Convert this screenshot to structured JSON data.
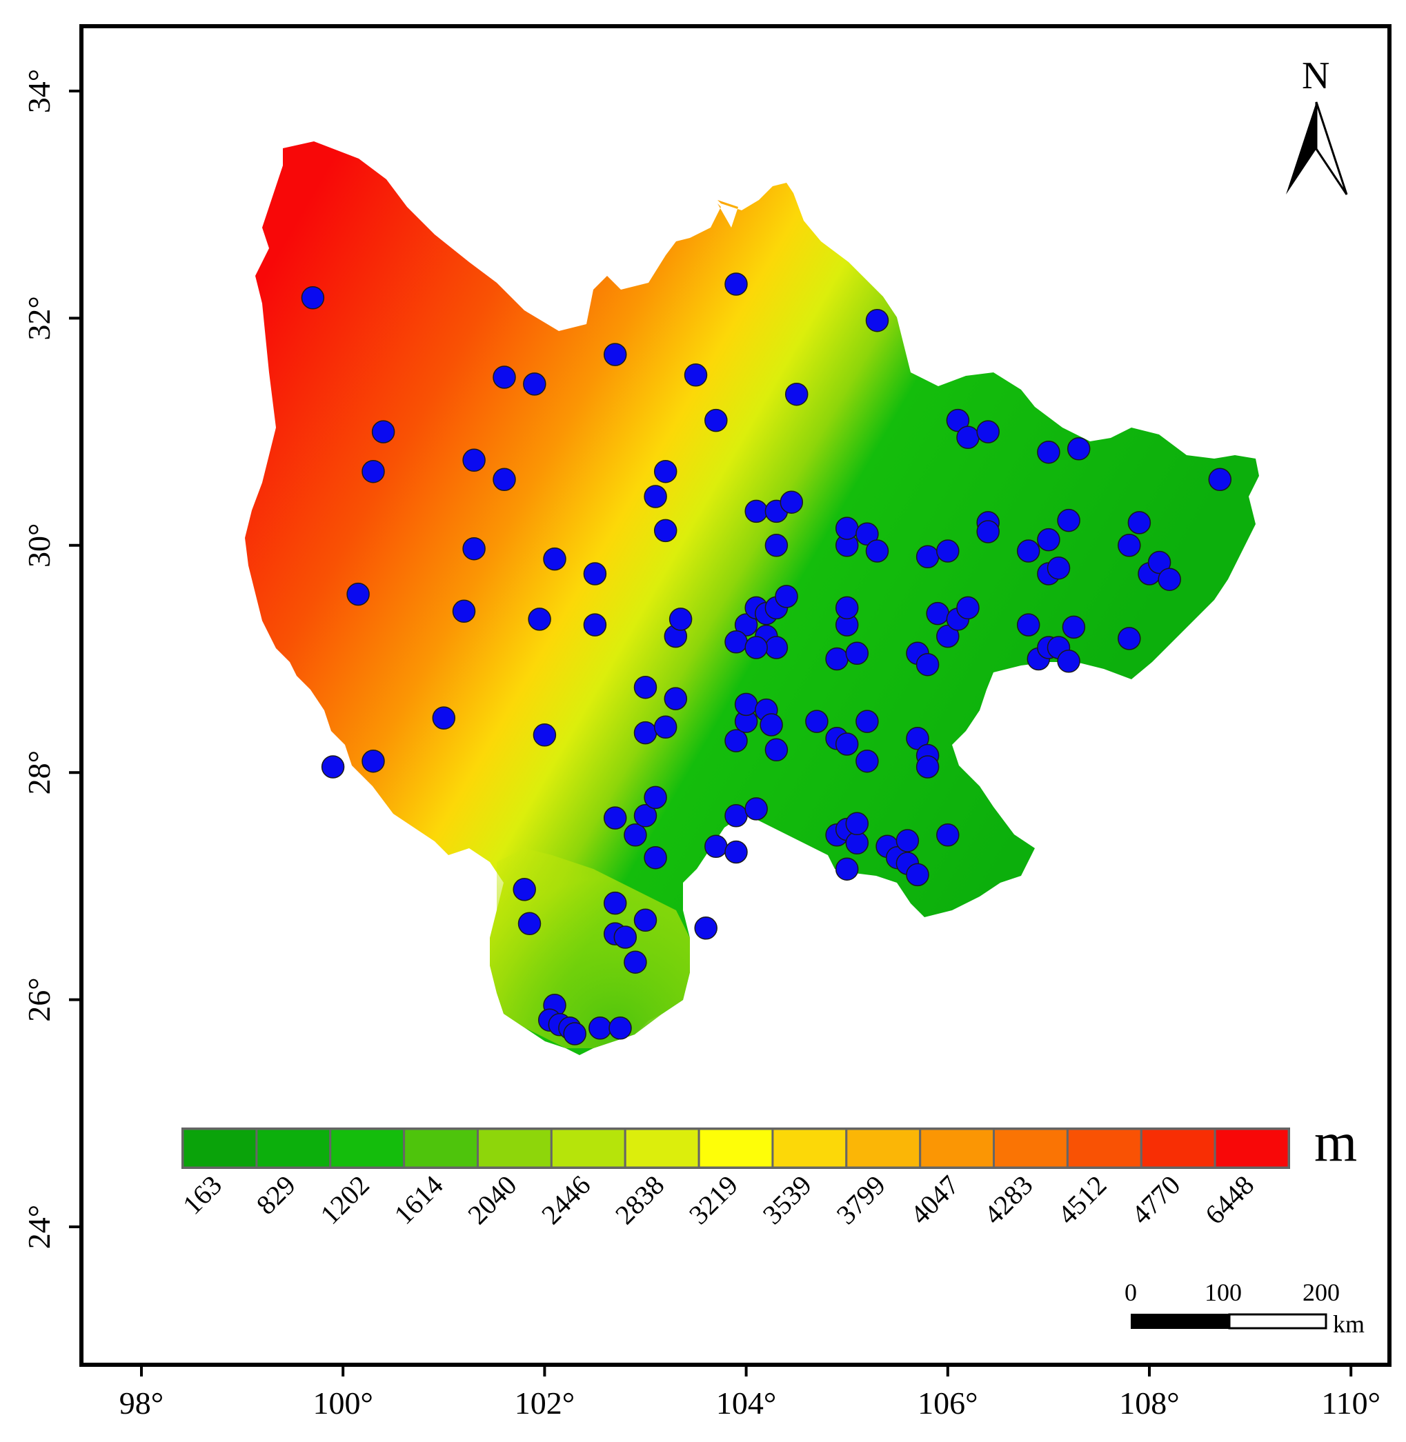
{
  "map": {
    "title": "",
    "longitude_ticks": [
      "98°",
      "100°",
      "102°",
      "104°",
      "106°",
      "108°",
      "110°"
    ],
    "latitude_ticks": [
      "24°",
      "26°",
      "28°",
      "30°",
      "32°",
      "34°"
    ],
    "longitude_values": [
      98,
      100,
      102,
      104,
      106,
      108,
      110
    ],
    "latitude_values": [
      24,
      26,
      28,
      30,
      32,
      34
    ],
    "extent": {
      "lon_min": 97.5,
      "lon_max": 110.4,
      "lat_min": 22.6,
      "lat_max": 34.5
    }
  },
  "legend": {
    "unit": "m",
    "labels": [
      "163",
      "829",
      "1202",
      "1614",
      "2040",
      "2446",
      "2838",
      "3219",
      "3539",
      "3799",
      "4047",
      "4283",
      "4512",
      "4770",
      "6448"
    ],
    "colors": [
      "#0aa30a",
      "#0caf0c",
      "#14bd0c",
      "#4ec40c",
      "#8ed60a",
      "#b6e40a",
      "#dcee0c",
      "#fefe08",
      "#fcd808",
      "#fbb606",
      "#fb9604",
      "#fa7404",
      "#f95204",
      "#f82e04",
      "#f80808"
    ]
  },
  "north_arrow": {
    "label": "N",
    "icon": "north-arrow-icon"
  },
  "scale_bar": {
    "labels": [
      "0",
      "100",
      "200"
    ],
    "unit": "km"
  },
  "stations": {
    "color": "#0a0af0",
    "points": [
      [
        99.7,
        32.18
      ],
      [
        103.9,
        32.3
      ],
      [
        105.3,
        31.98
      ],
      [
        102.7,
        31.68
      ],
      [
        101.6,
        31.48
      ],
      [
        101.9,
        31.42
      ],
      [
        103.5,
        31.5
      ],
      [
        104.5,
        31.33
      ],
      [
        103.7,
        31.1
      ],
      [
        100.4,
        31.0
      ],
      [
        100.3,
        30.65
      ],
      [
        101.3,
        30.75
      ],
      [
        101.6,
        30.58
      ],
      [
        103.2,
        30.65
      ],
      [
        103.1,
        30.43
      ],
      [
        103.2,
        30.13
      ],
      [
        104.1,
        30.3
      ],
      [
        104.3,
        30.3
      ],
      [
        104.45,
        30.38
      ],
      [
        104.3,
        30.0
      ],
      [
        101.3,
        29.97
      ],
      [
        102.1,
        29.88
      ],
      [
        102.5,
        29.75
      ],
      [
        100.15,
        29.57
      ],
      [
        101.2,
        29.42
      ],
      [
        101.95,
        29.35
      ],
      [
        102.5,
        29.3
      ],
      [
        103.3,
        29.2
      ],
      [
        103.35,
        29.35
      ],
      [
        104.0,
        29.3
      ],
      [
        104.1,
        29.45
      ],
      [
        104.2,
        29.4
      ],
      [
        104.3,
        29.45
      ],
      [
        104.4,
        29.55
      ],
      [
        104.2,
        29.2
      ],
      [
        104.3,
        29.1
      ],
      [
        103.9,
        29.15
      ],
      [
        104.1,
        29.1
      ],
      [
        104.9,
        29.0
      ],
      [
        105.0,
        29.3
      ],
      [
        105.0,
        29.45
      ],
      [
        105.1,
        29.05
      ],
      [
        105.0,
        30.0
      ],
      [
        105.0,
        30.15
      ],
      [
        105.2,
        30.1
      ],
      [
        105.3,
        29.95
      ],
      [
        105.8,
        29.9
      ],
      [
        106.0,
        29.95
      ],
      [
        105.9,
        29.4
      ],
      [
        106.0,
        29.2
      ],
      [
        106.1,
        29.35
      ],
      [
        106.2,
        29.45
      ],
      [
        105.7,
        29.05
      ],
      [
        105.8,
        28.95
      ],
      [
        106.1,
        31.1
      ],
      [
        106.2,
        30.95
      ],
      [
        106.4,
        31.0
      ],
      [
        106.4,
        30.2
      ],
      [
        106.4,
        30.12
      ],
      [
        106.8,
        29.95
      ],
      [
        107.0,
        30.05
      ],
      [
        107.0,
        29.75
      ],
      [
        107.1,
        29.8
      ],
      [
        107.0,
        30.82
      ],
      [
        107.3,
        30.85
      ],
      [
        107.2,
        30.22
      ],
      [
        106.8,
        29.3
      ],
      [
        106.9,
        29.0
      ],
      [
        107.0,
        29.1
      ],
      [
        107.1,
        29.1
      ],
      [
        107.2,
        28.98
      ],
      [
        107.25,
        29.28
      ],
      [
        107.8,
        30.0
      ],
      [
        107.9,
        30.2
      ],
      [
        107.8,
        29.18
      ],
      [
        108.0,
        29.75
      ],
      [
        108.1,
        29.85
      ],
      [
        108.2,
        29.7
      ],
      [
        108.7,
        30.58
      ],
      [
        101.0,
        28.48
      ],
      [
        102.0,
        28.33
      ],
      [
        103.0,
        28.75
      ],
      [
        103.0,
        28.35
      ],
      [
        103.2,
        28.4
      ],
      [
        103.3,
        28.65
      ],
      [
        103.9,
        28.28
      ],
      [
        104.0,
        28.45
      ],
      [
        104.0,
        28.6
      ],
      [
        104.2,
        28.55
      ],
      [
        104.25,
        28.42
      ],
      [
        104.3,
        28.2
      ],
      [
        104.7,
        28.45
      ],
      [
        104.9,
        28.3
      ],
      [
        105.0,
        28.25
      ],
      [
        105.2,
        28.45
      ],
      [
        105.2,
        28.1
      ],
      [
        105.7,
        28.3
      ],
      [
        105.8,
        28.15
      ],
      [
        105.8,
        28.05
      ],
      [
        99.9,
        28.05
      ],
      [
        100.3,
        28.1
      ],
      [
        102.7,
        27.6
      ],
      [
        102.9,
        27.45
      ],
      [
        103.0,
        27.62
      ],
      [
        103.1,
        27.25
      ],
      [
        103.1,
        27.78
      ],
      [
        103.7,
        27.35
      ],
      [
        103.9,
        27.62
      ],
      [
        103.9,
        27.3
      ],
      [
        104.1,
        27.68
      ],
      [
        104.9,
        27.45
      ],
      [
        105.0,
        27.5
      ],
      [
        105.1,
        27.38
      ],
      [
        105.1,
        27.55
      ],
      [
        105.4,
        27.35
      ],
      [
        105.5,
        27.25
      ],
      [
        105.6,
        27.4
      ],
      [
        105.6,
        27.2
      ],
      [
        105.7,
        27.1
      ],
      [
        106.0,
        27.45
      ],
      [
        105.0,
        27.15
      ],
      [
        101.8,
        26.97
      ],
      [
        101.85,
        26.67
      ],
      [
        102.7,
        26.85
      ],
      [
        103.0,
        26.7
      ],
      [
        102.7,
        26.58
      ],
      [
        102.8,
        26.55
      ],
      [
        102.9,
        26.33
      ],
      [
        103.6,
        26.63
      ],
      [
        102.1,
        25.95
      ],
      [
        102.05,
        25.82
      ],
      [
        102.15,
        25.78
      ],
      [
        102.25,
        25.75
      ],
      [
        102.3,
        25.7
      ],
      [
        102.55,
        25.75
      ],
      [
        102.75,
        25.75
      ]
    ]
  }
}
